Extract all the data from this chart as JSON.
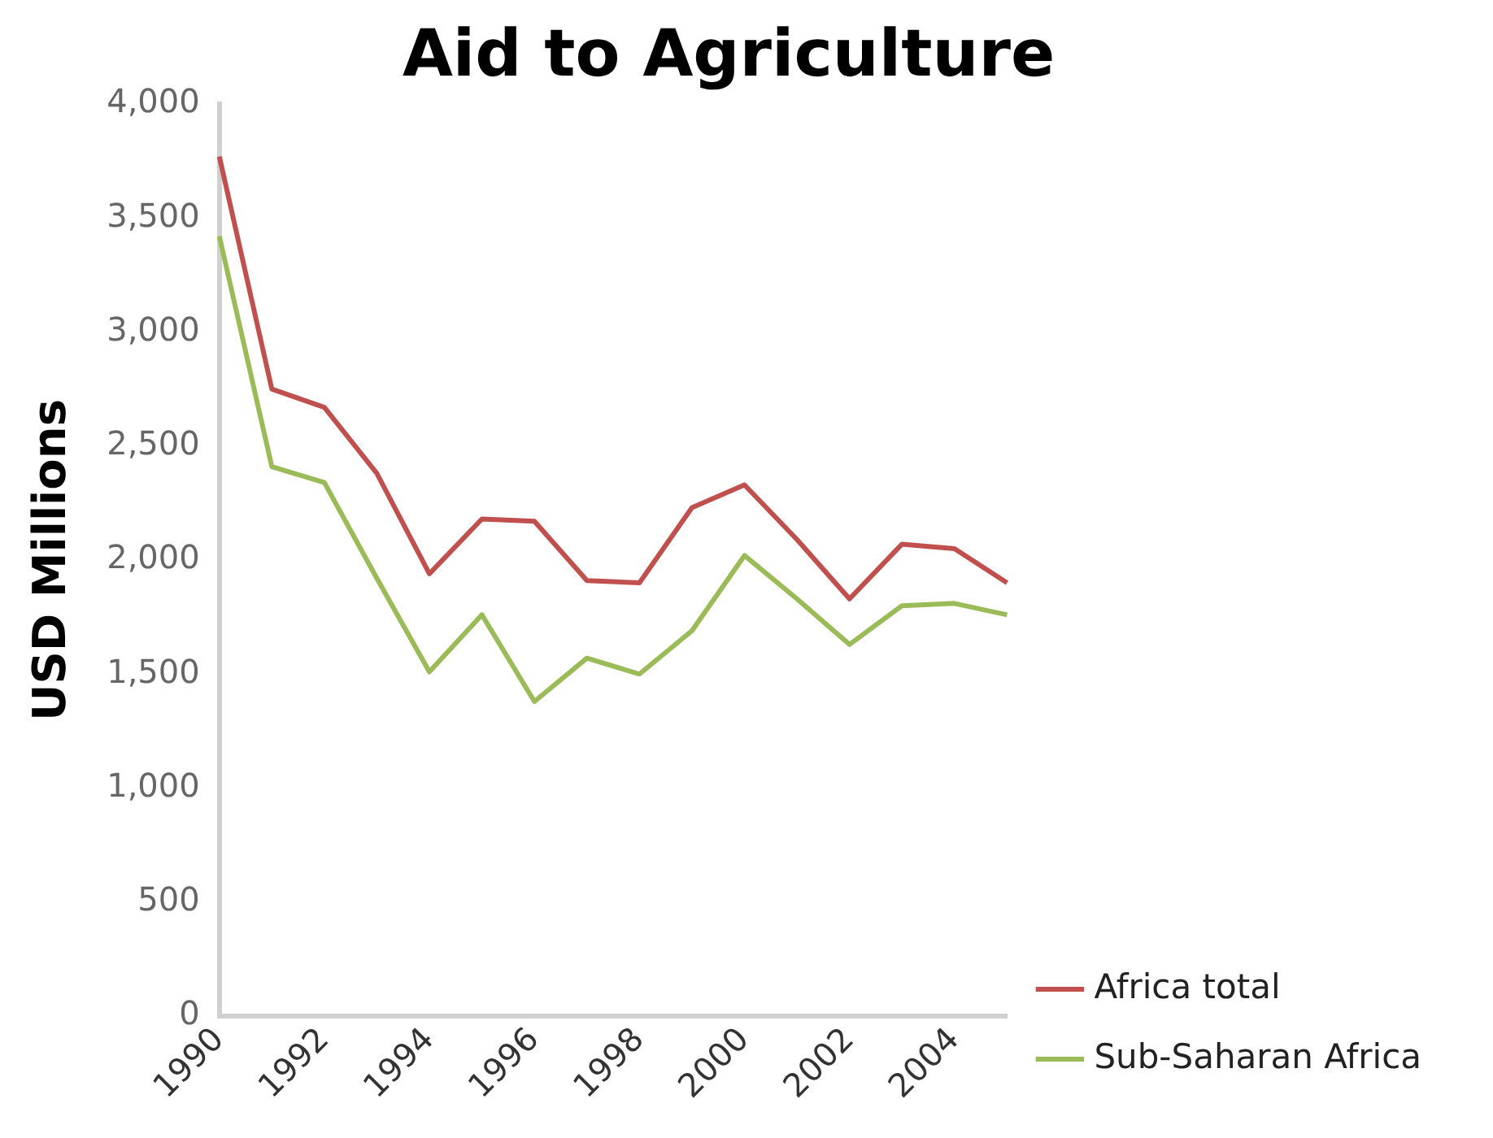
{
  "chart_data": {
    "type": "line",
    "title": "Aid to Agriculture",
    "ylabel": "USD Millions",
    "categories": [
      "1990",
      null,
      "1992",
      null,
      "1994",
      null,
      "1996",
      null,
      "1998",
      null,
      "2000",
      null,
      "2002",
      null,
      "2004",
      null
    ],
    "series": [
      {
        "name": "Africa total",
        "color": "#c0504d",
        "values": [
          3770,
          2750,
          2670,
          2380,
          1940,
          2180,
          2170,
          1910,
          1900,
          2230,
          2330,
          2090,
          1830,
          2070,
          2050,
          1900
        ]
      },
      {
        "name": "Sub-Saharan Africa",
        "color": "#9bbb59",
        "values": [
          3420,
          2410,
          2340,
          1920,
          1510,
          1760,
          1380,
          1570,
          1500,
          1690,
          2020,
          1830,
          1630,
          1800,
          1810,
          1760
        ]
      }
    ],
    "ylim": [
      0,
      4000
    ],
    "yticks": [
      0,
      500,
      {
        "value": 1000,
        "label": "1,000"
      },
      {
        "value": 1500,
        "label": "1,500"
      },
      {
        "value": 2000,
        "label": "2,000"
      },
      {
        "value": 2500,
        "label": "2,500"
      },
      {
        "value": 3000,
        "label": "3,000"
      },
      {
        "value": 3500,
        "label": "3,500"
      },
      {
        "value": 4000,
        "label": "4,000"
      }
    ],
    "grid": false,
    "legend": "bottom right",
    "marker": "none",
    "line_style": "solid"
  }
}
